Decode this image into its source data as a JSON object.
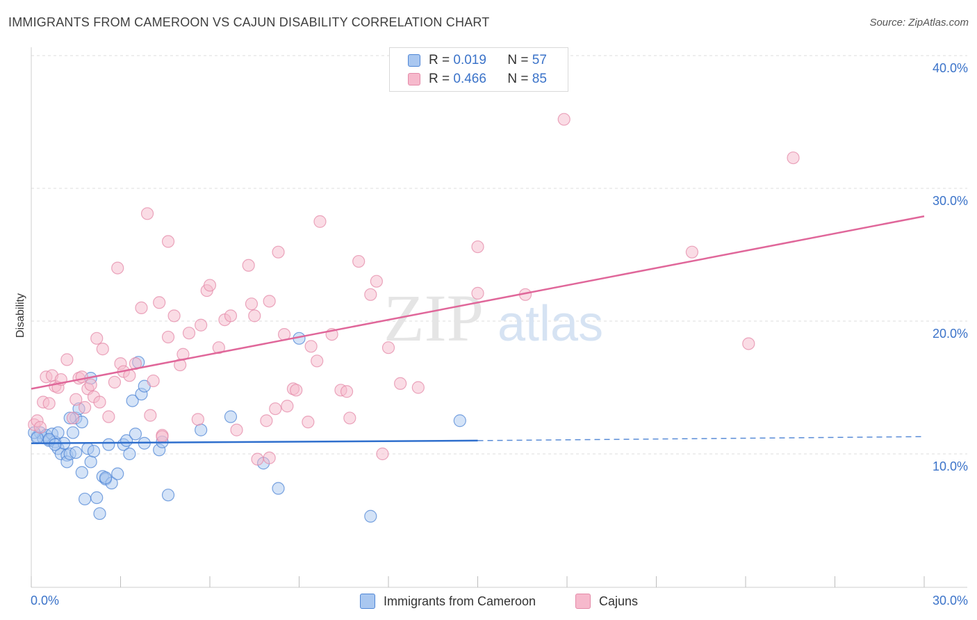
{
  "header": {
    "title": "IMMIGRANTS FROM CAMEROON VS CAJUN DISABILITY CORRELATION CHART",
    "source": "Source: ZipAtlas.com"
  },
  "watermark": {
    "zip": "ZIP",
    "atlas": "atlas"
  },
  "legend_top": {
    "rows": [
      {
        "r_label": "R = ",
        "r_value": "0.019",
        "n_label": "N = ",
        "n_value": "57"
      },
      {
        "r_label": "R = ",
        "r_value": "0.466",
        "n_label": "N = ",
        "n_value": "85"
      }
    ]
  },
  "colors": {
    "blue_fill": "#a9c7f0",
    "blue_stroke": "#4f86d6",
    "blue_line": "#2f6fcd",
    "pink_fill": "#f6b9cc",
    "pink_stroke": "#e48aa8",
    "pink_line": "#e0679a",
    "tick_label": "#3b73c9",
    "grid": "#dedede"
  },
  "chart_data": {
    "type": "scatter",
    "title": "IMMIGRANTS FROM CAMEROON VS CAJUN DISABILITY CORRELATION CHART",
    "xlabel": "",
    "ylabel": "Disability",
    "xlim": [
      0,
      30
    ],
    "ylim": [
      0,
      40
    ],
    "x_tick_labels": [
      "0.0%",
      "30.0%"
    ],
    "y_ticks": [
      10,
      20,
      30,
      40
    ],
    "y_tick_labels": [
      "10.0%",
      "20.0%",
      "30.0%",
      "40.0%"
    ],
    "grid": true,
    "legend_position": "bottom",
    "series": [
      {
        "name": "Immigrants from Cameroon",
        "color": "#4f86d6",
        "trend": {
          "x": [
            0,
            15
          ],
          "y": [
            10.8,
            11.0
          ],
          "dashed_to": [
            30,
            11.3
          ]
        },
        "points": [
          [
            0.2,
            11.3
          ],
          [
            0.3,
            11.6
          ],
          [
            0.4,
            11.2
          ],
          [
            0.5,
            11.4
          ],
          [
            0.6,
            11.0
          ],
          [
            0.7,
            11.5
          ],
          [
            0.8,
            10.9
          ],
          [
            0.9,
            11.6
          ],
          [
            0.9,
            10.4
          ],
          [
            1.0,
            10.0
          ],
          [
            1.1,
            10.8
          ],
          [
            1.2,
            9.9
          ],
          [
            1.2,
            9.4
          ],
          [
            1.3,
            10.0
          ],
          [
            1.4,
            11.6
          ],
          [
            1.5,
            10.1
          ],
          [
            1.5,
            12.7
          ],
          [
            1.6,
            13.4
          ],
          [
            1.7,
            8.6
          ],
          [
            1.7,
            12.4
          ],
          [
            1.8,
            6.6
          ],
          [
            1.9,
            10.4
          ],
          [
            2.0,
            15.7
          ],
          [
            2.0,
            9.4
          ],
          [
            2.1,
            10.2
          ],
          [
            2.2,
            6.7
          ],
          [
            2.3,
            5.5
          ],
          [
            2.4,
            8.3
          ],
          [
            2.5,
            8.1
          ],
          [
            2.6,
            10.7
          ],
          [
            2.7,
            7.8
          ],
          [
            2.9,
            8.5
          ],
          [
            3.1,
            10.7
          ],
          [
            3.2,
            11.0
          ],
          [
            3.3,
            10.0
          ],
          [
            3.4,
            14.0
          ],
          [
            3.5,
            11.5
          ],
          [
            3.6,
            16.9
          ],
          [
            3.7,
            14.5
          ],
          [
            3.8,
            10.8
          ],
          [
            3.8,
            15.1
          ],
          [
            4.3,
            10.3
          ],
          [
            4.4,
            10.9
          ],
          [
            4.6,
            6.9
          ],
          [
            5.7,
            11.8
          ],
          [
            6.7,
            12.8
          ],
          [
            7.8,
            9.3
          ],
          [
            8.3,
            7.4
          ],
          [
            9.0,
            18.7
          ],
          [
            11.4,
            5.3
          ],
          [
            14.4,
            12.5
          ],
          [
            0.1,
            11.6
          ],
          [
            0.2,
            11.2
          ],
          [
            0.6,
            11.1
          ],
          [
            0.8,
            10.7
          ],
          [
            1.3,
            12.7
          ],
          [
            2.5,
            8.2
          ]
        ]
      },
      {
        "name": "Cajuns",
        "color": "#e48aa8",
        "trend": {
          "x": [
            0,
            30
          ],
          "y": [
            14.9,
            27.9
          ]
        },
        "points": [
          [
            0.1,
            12.2
          ],
          [
            0.2,
            12.5
          ],
          [
            0.3,
            12.0
          ],
          [
            0.4,
            13.9
          ],
          [
            0.5,
            15.8
          ],
          [
            0.6,
            13.8
          ],
          [
            0.7,
            15.9
          ],
          [
            0.8,
            15.1
          ],
          [
            0.9,
            15.0
          ],
          [
            1.0,
            15.6
          ],
          [
            1.2,
            17.1
          ],
          [
            1.4,
            12.7
          ],
          [
            1.5,
            14.1
          ],
          [
            1.6,
            15.7
          ],
          [
            1.7,
            15.8
          ],
          [
            1.8,
            13.5
          ],
          [
            1.9,
            14.9
          ],
          [
            2.0,
            15.2
          ],
          [
            2.1,
            14.3
          ],
          [
            2.2,
            18.7
          ],
          [
            2.3,
            13.9
          ],
          [
            2.4,
            17.9
          ],
          [
            2.6,
            12.8
          ],
          [
            2.8,
            15.4
          ],
          [
            2.9,
            24.0
          ],
          [
            3.0,
            16.8
          ],
          [
            3.1,
            16.2
          ],
          [
            3.3,
            15.9
          ],
          [
            3.5,
            16.8
          ],
          [
            3.7,
            21.0
          ],
          [
            3.9,
            28.1
          ],
          [
            4.0,
            12.9
          ],
          [
            4.1,
            15.5
          ],
          [
            4.3,
            21.4
          ],
          [
            4.4,
            11.4
          ],
          [
            4.6,
            18.8
          ],
          [
            4.6,
            26.0
          ],
          [
            4.8,
            20.4
          ],
          [
            5.0,
            16.7
          ],
          [
            5.1,
            17.5
          ],
          [
            5.3,
            19.1
          ],
          [
            5.6,
            12.6
          ],
          [
            5.7,
            19.7
          ],
          [
            5.9,
            22.3
          ],
          [
            6.0,
            22.7
          ],
          [
            6.3,
            18.0
          ],
          [
            6.5,
            20.1
          ],
          [
            6.7,
            20.4
          ],
          [
            6.9,
            11.8
          ],
          [
            7.3,
            24.2
          ],
          [
            7.4,
            21.3
          ],
          [
            7.5,
            20.4
          ],
          [
            7.9,
            12.5
          ],
          [
            8.0,
            21.5
          ],
          [
            8.2,
            13.4
          ],
          [
            8.3,
            25.2
          ],
          [
            8.5,
            19.0
          ],
          [
            8.6,
            13.6
          ],
          [
            8.8,
            14.9
          ],
          [
            8.9,
            14.8
          ],
          [
            9.3,
            12.4
          ],
          [
            9.4,
            18.1
          ],
          [
            9.6,
            17.0
          ],
          [
            9.7,
            27.5
          ],
          [
            10.1,
            19.0
          ],
          [
            10.4,
            14.8
          ],
          [
            10.6,
            14.7
          ],
          [
            10.7,
            12.7
          ],
          [
            11.0,
            24.5
          ],
          [
            11.4,
            22.0
          ],
          [
            11.6,
            23.0
          ],
          [
            11.8,
            10.0
          ],
          [
            12.0,
            18.0
          ],
          [
            12.4,
            15.3
          ],
          [
            13.0,
            15.0
          ],
          [
            15.0,
            22.1
          ],
          [
            15.0,
            25.6
          ],
          [
            16.6,
            22.0
          ],
          [
            17.9,
            35.2
          ],
          [
            22.2,
            25.2
          ],
          [
            24.1,
            18.3
          ],
          [
            25.6,
            32.3
          ],
          [
            8.0,
            9.7
          ],
          [
            7.6,
            9.6
          ],
          [
            4.4,
            11.3
          ]
        ]
      }
    ]
  },
  "bottom_legend": [
    {
      "label": "Immigrants from Cameroon"
    },
    {
      "label": "Cajuns"
    }
  ]
}
